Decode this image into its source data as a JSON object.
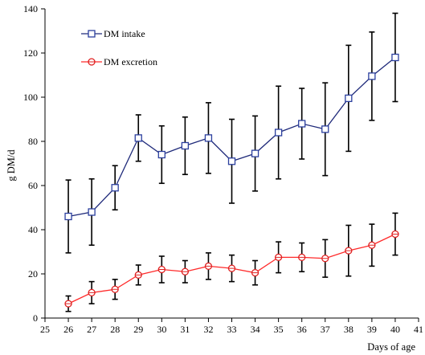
{
  "chart_data": {
    "type": "line",
    "title": "",
    "xlabel": "Days of age",
    "ylabel": "g DM/d",
    "xlim": [
      25,
      41
    ],
    "ylim": [
      0,
      140
    ],
    "x_ticks": [
      25,
      26,
      27,
      28,
      29,
      30,
      31,
      32,
      33,
      34,
      35,
      36,
      37,
      38,
      39,
      40,
      41
    ],
    "y_ticks": [
      0,
      20,
      40,
      60,
      80,
      100,
      120,
      140
    ],
    "grid": false,
    "legend_position": "top-left",
    "x": [
      26,
      27,
      28,
      29,
      30,
      31,
      32,
      33,
      34,
      35,
      36,
      37,
      38,
      39,
      40
    ],
    "series": [
      {
        "name": "DM intake",
        "color": "#1f2a7a",
        "marker_edge": "#2b3f9e",
        "marker": "square",
        "values": [
          46,
          48,
          59,
          81.5,
          74,
          78,
          81.5,
          71,
          74.5,
          84,
          88,
          85.5,
          99.5,
          109.5,
          118
        ],
        "error": [
          16.5,
          15,
          10,
          10.5,
          13,
          13,
          16,
          19,
          17,
          21,
          16,
          21,
          24,
          20,
          20
        ]
      },
      {
        "name": "DM excretion",
        "color": "#ff2a2a",
        "marker_edge": "#e02020",
        "marker": "circle",
        "values": [
          6.5,
          11.5,
          13,
          19.5,
          22,
          21,
          23.5,
          22.5,
          20.5,
          27.5,
          27.5,
          27,
          30.5,
          33,
          38
        ],
        "error": [
          3.5,
          5,
          4.5,
          4.5,
          6,
          5,
          6,
          6,
          5.5,
          7,
          6.5,
          8.5,
          11.5,
          9.5,
          9.5
        ]
      }
    ]
  }
}
